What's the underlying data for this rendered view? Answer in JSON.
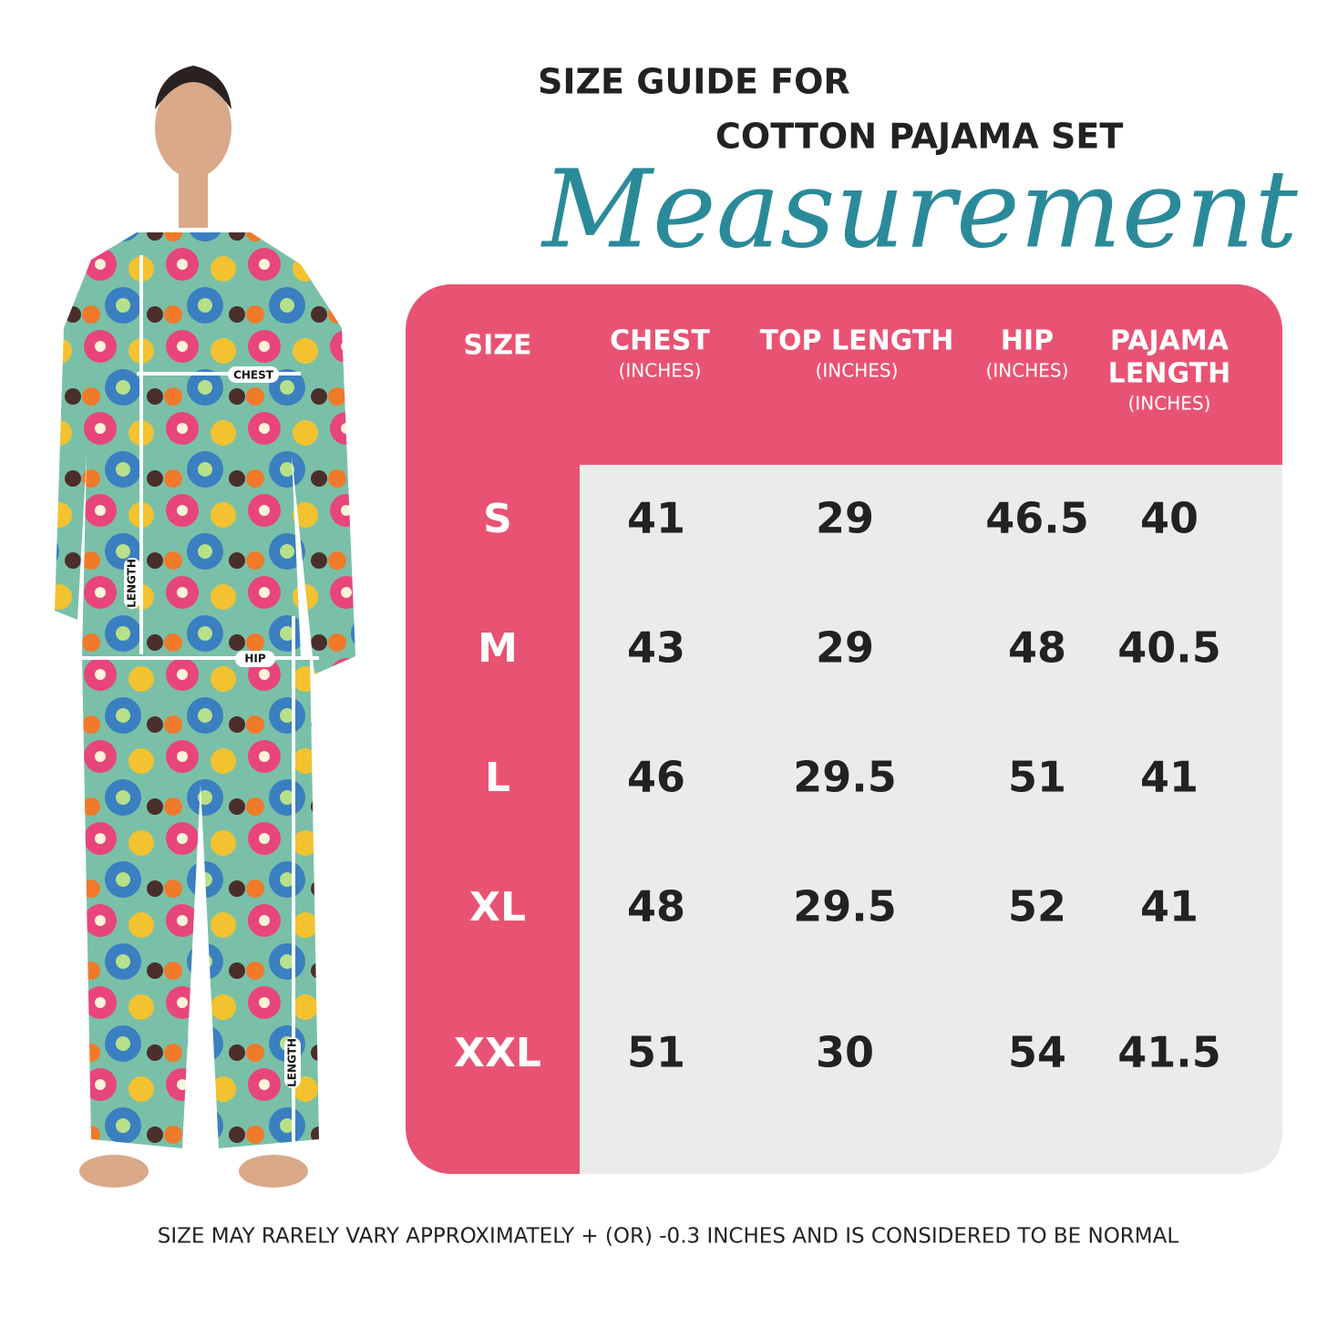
{
  "header": {
    "line1": "SIZE GUIDE FOR",
    "line2": "COTTON PAJAMA SET",
    "script": "Measurement"
  },
  "figure": {
    "chest": "CHEST",
    "top_length": "LENGTH",
    "hip": "HIP",
    "pajama_length": "LENGTH"
  },
  "table": {
    "columns": [
      {
        "name": [
          "SIZE"
        ]
      },
      {
        "name": [
          "CHEST"
        ],
        "unit": "(INCHES)"
      },
      {
        "name": [
          "TOP LENGTH"
        ],
        "unit": "(INCHES)"
      },
      {
        "name": [
          "HIP"
        ],
        "unit": "(INCHES)"
      },
      {
        "name": [
          "PAJAMA",
          "LENGTH"
        ],
        "unit": "(INCHES)"
      }
    ],
    "rows": [
      [
        "S",
        41,
        29,
        46.5,
        40
      ],
      [
        "M",
        43,
        29,
        48,
        40.5
      ],
      [
        "L",
        46,
        29.5,
        51,
        41
      ],
      [
        "XL",
        48,
        29.5,
        52,
        41
      ],
      [
        "XXL",
        51,
        30,
        54,
        41.5
      ]
    ]
  },
  "footnote": "SIZE MAY RARELY VARY  APPROXIMATELY + (OR) -0.3 INCHES AND IS CONSIDERED TO BE NORMAL"
}
